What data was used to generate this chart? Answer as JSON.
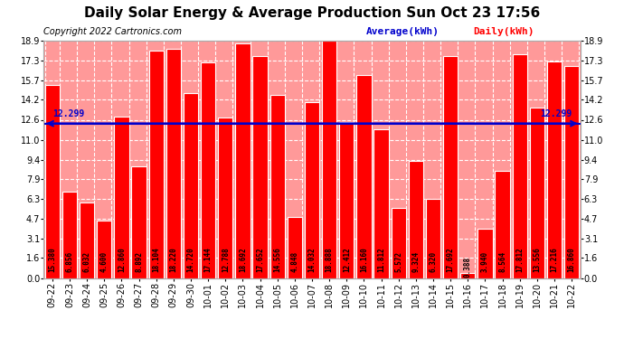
{
  "title": "Daily Solar Energy & Average Production Sun Oct 23 17:56",
  "copyright": "Copyright 2022 Cartronics.com",
  "legend_avg": "Average(kWh)",
  "legend_daily": "Daily(kWh)",
  "average_value": 12.299,
  "categories": [
    "09-22",
    "09-23",
    "09-24",
    "09-25",
    "09-26",
    "09-27",
    "09-28",
    "09-29",
    "09-30",
    "10-01",
    "10-02",
    "10-03",
    "10-04",
    "10-05",
    "10-06",
    "10-07",
    "10-08",
    "10-09",
    "10-10",
    "10-11",
    "10-12",
    "10-13",
    "10-14",
    "10-15",
    "10-16",
    "10-17",
    "10-18",
    "10-19",
    "10-20",
    "10-21",
    "10-22"
  ],
  "values": [
    15.38,
    6.856,
    6.032,
    4.6,
    12.86,
    8.892,
    18.104,
    18.22,
    14.72,
    17.144,
    12.788,
    18.692,
    17.652,
    14.556,
    4.848,
    14.032,
    18.888,
    12.412,
    16.16,
    11.812,
    5.572,
    9.324,
    6.32,
    17.692,
    0.388,
    3.94,
    8.564,
    17.812,
    13.556,
    17.216,
    16.86
  ],
  "bar_color": "#ff0000",
  "avg_line_color": "#0000cc",
  "title_color": "#000000",
  "copyright_color": "#000000",
  "legend_avg_color": "#0000cc",
  "legend_daily_color": "#ff0000",
  "ytick_labels": [
    "0.0",
    "1.6",
    "3.1",
    "4.7",
    "6.3",
    "7.9",
    "9.4",
    "11.0",
    "12.6",
    "14.2",
    "15.7",
    "17.3",
    "18.9"
  ],
  "ytick_values": [
    0.0,
    1.6,
    3.1,
    4.7,
    6.3,
    7.9,
    9.4,
    11.0,
    12.6,
    14.2,
    15.7,
    17.3,
    18.9
  ],
  "ylim": [
    0.0,
    18.9
  ],
  "plot_bg_color": "#ff9999",
  "figure_bg_color": "#ffffff",
  "grid_color": "#ffffff",
  "value_label_color": "#000000",
  "avg_label": "12.299",
  "title_fontsize": 11,
  "copyright_fontsize": 7,
  "tick_fontsize": 7,
  "value_label_fontsize": 5.5,
  "legend_fontsize": 8
}
